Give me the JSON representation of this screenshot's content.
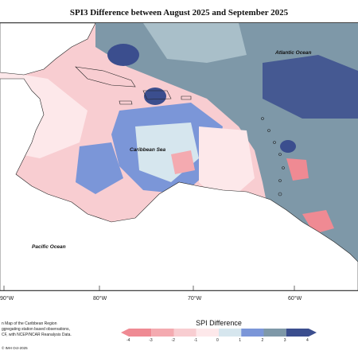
{
  "title": "SPI3 Difference between August 2025 and September 2025",
  "labels": {
    "atlantic": "Atlantic Ocean",
    "caribbean": "Caribbean Sea",
    "pacific": "Pacific Ocean"
  },
  "longitude_ticks": [
    "90°W",
    "80°W",
    "70°W",
    "60°W"
  ],
  "legend": {
    "title": "SPI Difference",
    "ticks": [
      "-4",
      "-3",
      "-2",
      "-1",
      "0",
      "1",
      "2",
      "3",
      "4"
    ],
    "colors": [
      "#ef8a93",
      "#f4aab0",
      "#f8cdd1",
      "#fde8ea",
      "#ffffff",
      "#d6e6ee",
      "#7b96d8",
      "#7e98a8",
      "#3b4e8e"
    ]
  },
  "notes": {
    "line1": "n Map of the Caribbean Region",
    "line2": "ggregating station based observations,",
    "line3": "CF, with NCEP/NCAR Reanalysis Data.",
    "credit": "© IMH Oct-2025"
  }
}
